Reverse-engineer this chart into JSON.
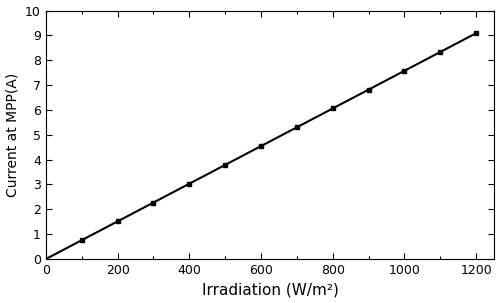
{
  "x_data": [
    100,
    200,
    300,
    400,
    500,
    600,
    700,
    800,
    900,
    1000,
    1100,
    1200
  ],
  "xlabel": "Irradiation (W/m²)",
  "ylabel": "Current at MPP(A)",
  "xlim": [
    0,
    1250
  ],
  "ylim": [
    0,
    10
  ],
  "xticks": [
    0,
    200,
    400,
    600,
    800,
    1000,
    1200
  ],
  "yticks": [
    0,
    1,
    2,
    3,
    4,
    5,
    6,
    7,
    8,
    9,
    10
  ],
  "line_color": "#000000",
  "marker": "s",
  "marker_size": 3.5,
  "linewidth": 1.5,
  "bg_color": "#ffffff",
  "xlabel_fontsize": 11,
  "ylabel_fontsize": 10,
  "tick_fontsize": 9,
  "slope": 0.007575757575,
  "intercept": 0.0
}
